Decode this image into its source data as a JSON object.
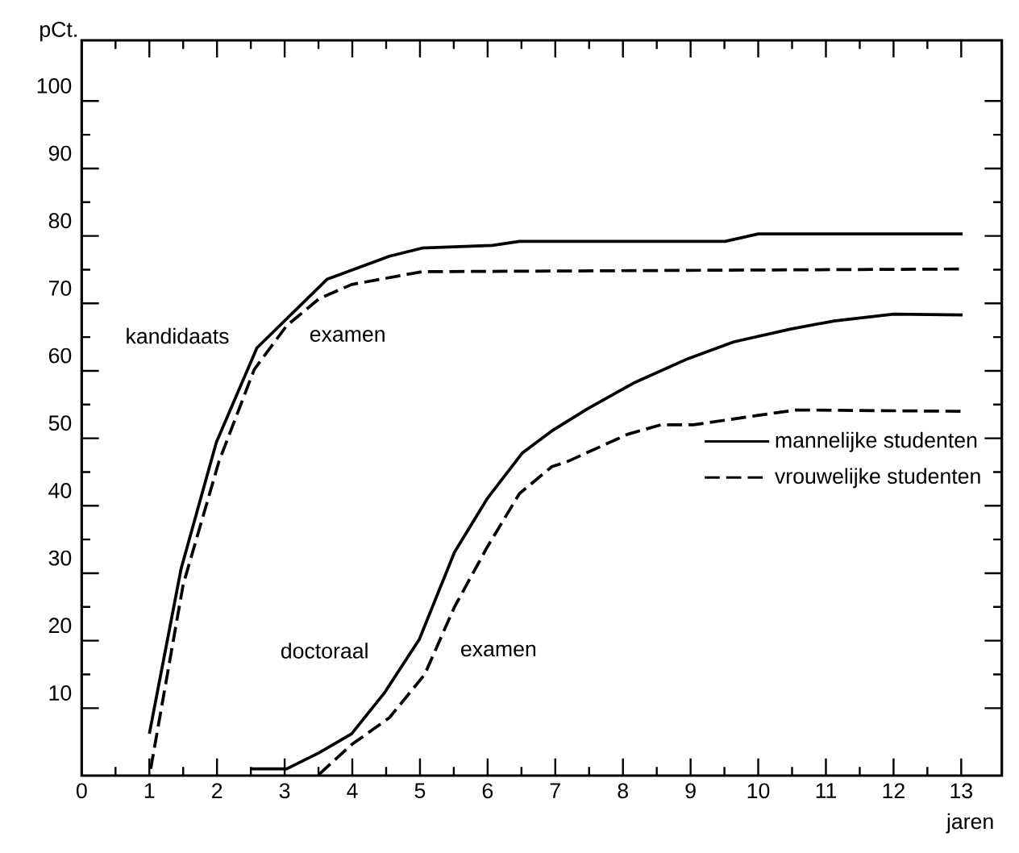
{
  "chart_data": {
    "type": "line",
    "xlabel": "jaren",
    "ylabel": "pCt.",
    "xlim": [
      0,
      13.6
    ],
    "ylim": [
      0,
      109
    ],
    "xticks": [
      0,
      1,
      2,
      3,
      4,
      5,
      6,
      7,
      8,
      9,
      10,
      11,
      12,
      13
    ],
    "yticks": [
      10,
      20,
      30,
      40,
      50,
      60,
      70,
      80,
      90,
      100
    ],
    "grid": false,
    "legend": "right",
    "series": [
      {
        "name": "mannelijke studenten",
        "color": "#000000",
        "line_style": "solid",
        "x": [
          1.0,
          1.47,
          1.99,
          2.59,
          3.63,
          4.55,
          5.03,
          6.07,
          6.47,
          9.51,
          10.0,
          13.02
        ],
        "values": [
          6.2,
          30.7,
          49.4,
          63.4,
          73.6,
          77,
          78.2,
          78.6,
          79.2,
          79.2,
          80.3,
          80.3
        ]
      },
      {
        "name": "vrouwelijke studenten",
        "color": "#000000",
        "line_style": "dashed",
        "x": [
          1.02,
          1.5,
          2.03,
          2.55,
          3.03,
          3.51,
          3.99,
          5.03,
          13.02
        ],
        "values": [
          1,
          28.3,
          46.6,
          60.2,
          66.7,
          70.7,
          72.8,
          74.7,
          75.1
        ]
      },
      {
        "color": "#000000",
        "line_style": "solid",
        "x": [
          2.5,
          3.03,
          3.51,
          3.99,
          4.47,
          4.99,
          5.51,
          5.99,
          6.51,
          6.95,
          7.48,
          8.16,
          8.96,
          9.64,
          10.48,
          11.12,
          12.0,
          13.02
        ],
        "values": [
          1,
          1,
          3.4,
          6.2,
          12.2,
          20.2,
          33.1,
          41,
          47.8,
          51.1,
          54.4,
          58.2,
          61.8,
          64.3,
          66.2,
          67.4,
          68.4,
          68.3
        ]
      },
      {
        "color": "#000000",
        "line_style": "dashed",
        "x": [
          3.51,
          3.99,
          4.55,
          5.07,
          5.51,
          5.99,
          6.47,
          6.95,
          7.19,
          8.07,
          8.56,
          9.04,
          10.0,
          10.56,
          13.02
        ],
        "values": [
          0.2,
          4.6,
          8.6,
          15,
          25,
          33.8,
          41.8,
          45.8,
          46.6,
          50.6,
          52,
          52,
          53.4,
          54.2,
          54
        ]
      }
    ],
    "annotations": [
      "kandidaats",
      "examen",
      "doctoraal",
      "examen"
    ]
  }
}
